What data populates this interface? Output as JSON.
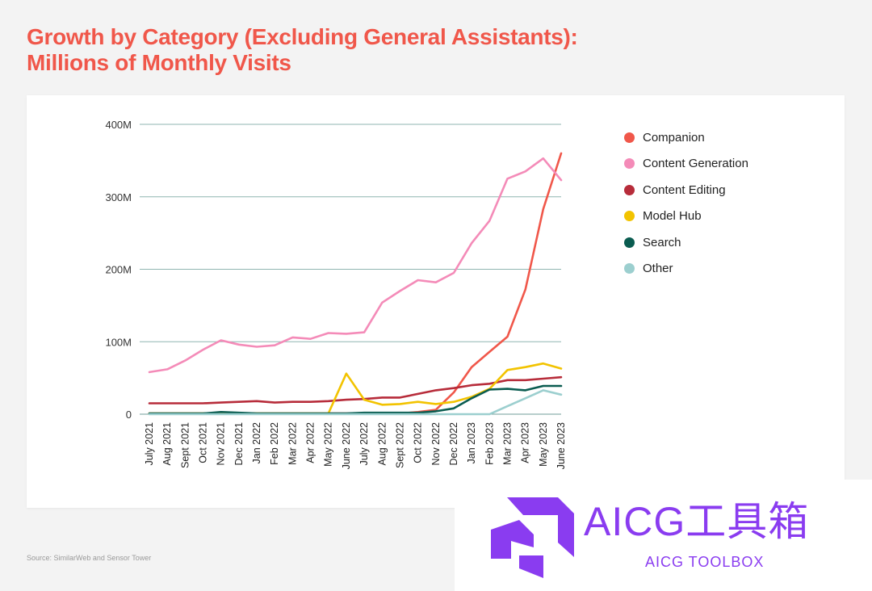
{
  "title": {
    "line1": "Growth by Category (Excluding General Assistants):",
    "line2": "Millions of Monthly Visits"
  },
  "source": "Source: SimilarWeb and Sensor Tower",
  "watermark": {
    "text": "AICG工具箱",
    "subtext": "AICG TOOLBOX",
    "color": "#8a3cf0",
    "icon": "aicg-logo-icon"
  },
  "chart_data": {
    "type": "line",
    "title": "Growth by Category (Excluding General Assistants): Millions of Monthly Visits",
    "xlabel": "",
    "ylabel": "",
    "ylim": [
      0,
      400
    ],
    "yticks": [
      0,
      100,
      200,
      300,
      400
    ],
    "ytick_labels": [
      "0",
      "100M",
      "200M",
      "300M",
      "400M"
    ],
    "grid": "horizontal",
    "legend_position": "right",
    "categories": [
      "July 2021",
      "Aug 2021",
      "Sept 2021",
      "Oct 2021",
      "Nov 2021",
      "Dec 2021",
      "Jan 2022",
      "Feb 2022",
      "Mar 2022",
      "Apr 2022",
      "May 2022",
      "June 2022",
      "July 2022",
      "Aug 2022",
      "Sept 2022",
      "Oct 2022",
      "Nov 2022",
      "Dec 2022",
      "Jan 2023",
      "Feb 2023",
      "Mar 2023",
      "Apr 2023",
      "May 2023",
      "June 2023"
    ],
    "series": [
      {
        "name": "Companion",
        "color": "#f0574a",
        "values": [
          1,
          1,
          1,
          1,
          1,
          1,
          1,
          1,
          1,
          1,
          1,
          1,
          1,
          1,
          1,
          3,
          6,
          30,
          65,
          86,
          107,
          172,
          283,
          360
        ]
      },
      {
        "name": "Content Generation",
        "color": "#f48bb8",
        "values": [
          58,
          62,
          74,
          89,
          102,
          96,
          93,
          95,
          106,
          104,
          112,
          111,
          113,
          154,
          170,
          185,
          182,
          195,
          236,
          267,
          325,
          335,
          353,
          323
        ]
      },
      {
        "name": "Content Editing",
        "color": "#b72c3a",
        "values": [
          15,
          15,
          15,
          15,
          16,
          17,
          18,
          16,
          17,
          17,
          18,
          20,
          21,
          23,
          23,
          28,
          33,
          36,
          40,
          42,
          47,
          47,
          49,
          51
        ]
      },
      {
        "name": "Model Hub",
        "color": "#f2c300",
        "values": [
          1,
          1,
          1,
          1,
          1,
          1,
          1,
          1,
          1,
          1,
          1,
          56,
          20,
          13,
          14,
          17,
          14,
          17,
          24,
          35,
          61,
          65,
          70,
          63
        ]
      },
      {
        "name": "Search",
        "color": "#0a5c50",
        "values": [
          1,
          1,
          1,
          1,
          3,
          2,
          1,
          1,
          1,
          1,
          1,
          1,
          2,
          2,
          2,
          2,
          4,
          8,
          22,
          34,
          35,
          33,
          39,
          39
        ]
      },
      {
        "name": "Other",
        "color": "#9ccfcf",
        "values": [
          0,
          0,
          0,
          0,
          0,
          0,
          0,
          0,
          0,
          0,
          0,
          0,
          0,
          0,
          0,
          0,
          0,
          0,
          0,
          0,
          11,
          22,
          33,
          27
        ]
      }
    ]
  }
}
